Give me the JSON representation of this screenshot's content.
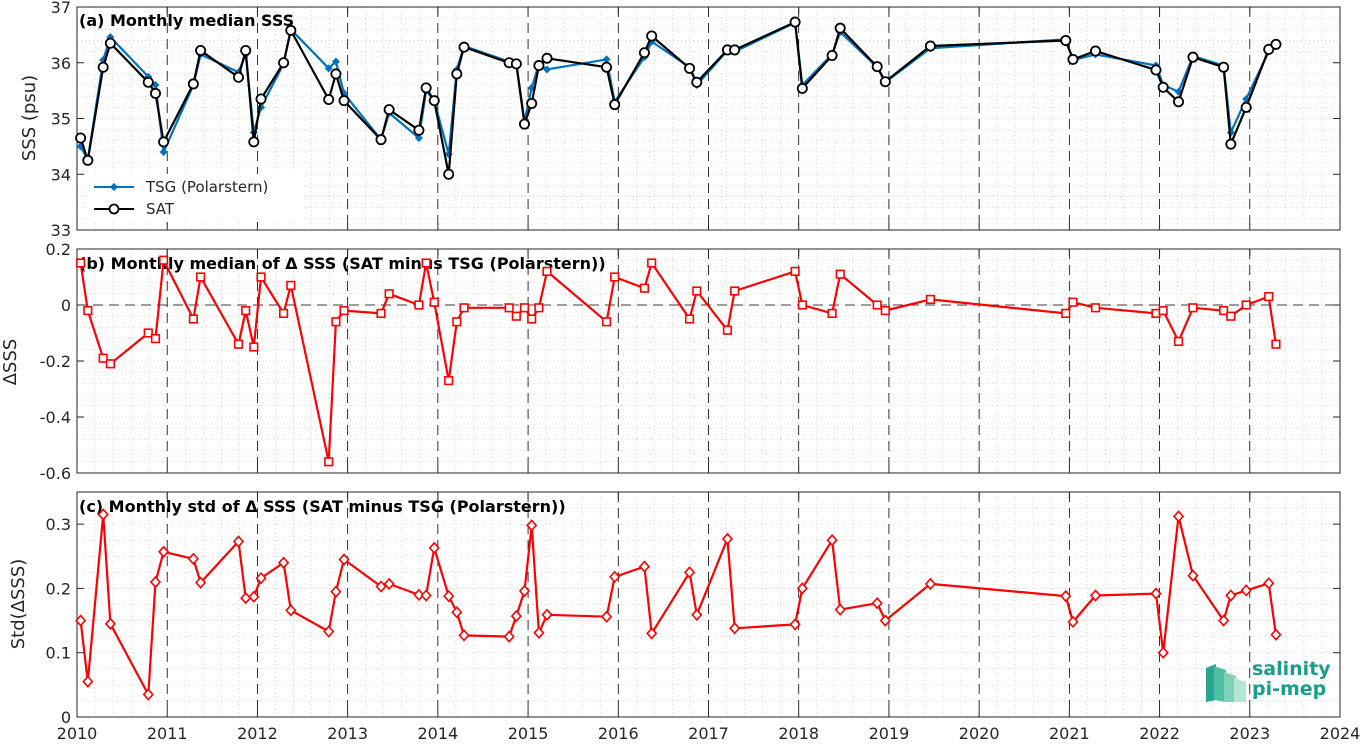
{
  "colors": {
    "tsg": "#0072BD",
    "sat": "#000000",
    "delta": "#ff0000"
  },
  "x_ticks": [
    "2010",
    "2011",
    "2012",
    "2013",
    "2014",
    "2015",
    "2016",
    "2017",
    "2018",
    "2019",
    "2020",
    "2021",
    "2022",
    "2023",
    "2024"
  ],
  "chart_data": [
    {
      "type": "line",
      "title": "(a) Monthly median SSS",
      "ylabel": "SSS (psu)",
      "xlim": [
        2010,
        2024
      ],
      "ylim": [
        33,
        37
      ],
      "yticks": [
        "33",
        "34",
        "35",
        "36",
        "37"
      ],
      "grid": "dotted minor grid; dashed vertical year lines",
      "legend_position": "lower-left",
      "series": [
        {
          "name": "TSG (Polarstern)",
          "marker": "filled-diamond",
          "points": [
            [
              2010.04,
              34.5
            ],
            [
              2010.12,
              34.26
            ],
            [
              2010.29,
              36.05
            ],
            [
              2010.37,
              36.46
            ],
            [
              2010.79,
              35.75
            ],
            [
              2010.87,
              35.6
            ],
            [
              2010.96,
              34.4
            ],
            [
              2011.29,
              35.6
            ],
            [
              2011.37,
              36.15
            ],
            [
              2011.79,
              35.83
            ],
            [
              2011.87,
              36.15
            ],
            [
              2011.96,
              34.75
            ],
            [
              2012.04,
              35.2
            ],
            [
              2012.29,
              35.98
            ],
            [
              2012.37,
              36.6
            ],
            [
              2012.79,
              35.9
            ],
            [
              2012.87,
              36.02
            ],
            [
              2012.96,
              35.45
            ],
            [
              2013.37,
              34.62
            ],
            [
              2013.46,
              35.1
            ],
            [
              2013.79,
              34.65
            ],
            [
              2013.87,
              35.5
            ],
            [
              2013.96,
              35.32
            ],
            [
              2014.12,
              34.36
            ],
            [
              2014.21,
              35.88
            ],
            [
              2014.29,
              36.3
            ],
            [
              2014.79,
              36.02
            ],
            [
              2014.87,
              36.0
            ],
            [
              2014.96,
              34.95
            ],
            [
              2015.04,
              35.55
            ],
            [
              2015.12,
              35.98
            ],
            [
              2015.21,
              35.88
            ],
            [
              2015.87,
              36.06
            ],
            [
              2015.96,
              35.3
            ],
            [
              2016.29,
              36.1
            ],
            [
              2016.37,
              36.38
            ],
            [
              2016.79,
              35.92
            ],
            [
              2016.87,
              35.6
            ],
            [
              2017.21,
              36.22
            ],
            [
              2017.29,
              36.2
            ],
            [
              2017.96,
              36.72
            ],
            [
              2018.04,
              35.6
            ],
            [
              2018.37,
              36.15
            ],
            [
              2018.46,
              36.55
            ],
            [
              2018.87,
              35.92
            ],
            [
              2018.96,
              35.65
            ],
            [
              2019.46,
              36.26
            ],
            [
              2020.96,
              36.42
            ],
            [
              2021.04,
              36.05
            ],
            [
              2021.29,
              36.15
            ],
            [
              2021.96,
              35.95
            ],
            [
              2022.04,
              35.6
            ],
            [
              2022.21,
              35.48
            ],
            [
              2022.37,
              36.12
            ],
            [
              2022.71,
              35.95
            ],
            [
              2022.79,
              34.75
            ],
            [
              2022.96,
              35.35
            ],
            [
              2023.21,
              36.2
            ],
            [
              2023.29,
              36.32
            ]
          ]
        },
        {
          "name": "SAT",
          "marker": "open-circle",
          "points": [
            [
              2010.04,
              34.65
            ],
            [
              2010.12,
              34.25
            ],
            [
              2010.29,
              35.92
            ],
            [
              2010.37,
              36.35
            ],
            [
              2010.79,
              35.65
            ],
            [
              2010.87,
              35.45
            ],
            [
              2010.96,
              34.58
            ],
            [
              2011.29,
              35.62
            ],
            [
              2011.37,
              36.22
            ],
            [
              2011.79,
              35.74
            ],
            [
              2011.87,
              36.22
            ],
            [
              2011.96,
              34.58
            ],
            [
              2012.04,
              35.35
            ],
            [
              2012.29,
              36.0
            ],
            [
              2012.37,
              36.58
            ],
            [
              2012.79,
              35.34
            ],
            [
              2012.87,
              35.8
            ],
            [
              2012.96,
              35.32
            ],
            [
              2013.37,
              34.62
            ],
            [
              2013.46,
              35.16
            ],
            [
              2013.79,
              34.79
            ],
            [
              2013.87,
              35.55
            ],
            [
              2013.96,
              35.32
            ],
            [
              2014.12,
              34.0
            ],
            [
              2014.21,
              35.8
            ],
            [
              2014.29,
              36.28
            ],
            [
              2014.79,
              36.0
            ],
            [
              2014.87,
              35.98
            ],
            [
              2014.96,
              34.9
            ],
            [
              2015.04,
              35.27
            ],
            [
              2015.12,
              35.95
            ],
            [
              2015.21,
              36.08
            ],
            [
              2015.87,
              35.92
            ],
            [
              2015.96,
              35.25
            ],
            [
              2016.29,
              36.18
            ],
            [
              2016.37,
              36.48
            ],
            [
              2016.79,
              35.9
            ],
            [
              2016.87,
              35.65
            ],
            [
              2017.21,
              36.23
            ],
            [
              2017.29,
              36.23
            ],
            [
              2017.96,
              36.73
            ],
            [
              2018.04,
              35.54
            ],
            [
              2018.37,
              36.13
            ],
            [
              2018.46,
              36.62
            ],
            [
              2018.87,
              35.93
            ],
            [
              2018.96,
              35.66
            ],
            [
              2019.46,
              36.3
            ],
            [
              2020.96,
              36.4
            ],
            [
              2021.04,
              36.06
            ],
            [
              2021.29,
              36.21
            ],
            [
              2021.96,
              35.87
            ],
            [
              2022.04,
              35.56
            ],
            [
              2022.21,
              35.3
            ],
            [
              2022.37,
              36.1
            ],
            [
              2022.71,
              35.92
            ],
            [
              2022.79,
              34.54
            ],
            [
              2022.96,
              35.2
            ],
            [
              2023.21,
              36.24
            ],
            [
              2023.29,
              36.33
            ]
          ]
        }
      ]
    },
    {
      "type": "line",
      "title": "(b) Monthly median of Δ SSS (SAT minus TSG (Polarstern))",
      "ylabel": "ΔSSS",
      "xlim": [
        2010,
        2024
      ],
      "ylim": [
        -0.6,
        0.2
      ],
      "yticks": [
        "-0.6",
        "-0.4",
        "-0.2",
        "0",
        "0.2"
      ],
      "zero_line": "dashed",
      "series": [
        {
          "marker": "open-square",
          "points": [
            [
              2010.04,
              0.15
            ],
            [
              2010.12,
              -0.02
            ],
            [
              2010.29,
              -0.19
            ],
            [
              2010.37,
              -0.21
            ],
            [
              2010.79,
              -0.1
            ],
            [
              2010.87,
              -0.12
            ],
            [
              2010.96,
              0.16
            ],
            [
              2011.29,
              -0.05
            ],
            [
              2011.37,
              0.1
            ],
            [
              2011.79,
              -0.14
            ],
            [
              2011.87,
              -0.02
            ],
            [
              2011.96,
              -0.15
            ],
            [
              2012.04,
              0.1
            ],
            [
              2012.29,
              -0.03
            ],
            [
              2012.37,
              0.07
            ],
            [
              2012.79,
              -0.56
            ],
            [
              2012.87,
              -0.06
            ],
            [
              2012.96,
              -0.02
            ],
            [
              2013.37,
              -0.03
            ],
            [
              2013.46,
              0.04
            ],
            [
              2013.79,
              0.0
            ],
            [
              2013.87,
              0.15
            ],
            [
              2013.96,
              0.01
            ],
            [
              2014.12,
              -0.27
            ],
            [
              2014.21,
              -0.06
            ],
            [
              2014.29,
              -0.01
            ],
            [
              2014.79,
              -0.01
            ],
            [
              2014.87,
              -0.04
            ],
            [
              2014.96,
              -0.01
            ],
            [
              2015.04,
              -0.05
            ],
            [
              2015.12,
              -0.01
            ],
            [
              2015.21,
              0.12
            ],
            [
              2015.87,
              -0.06
            ],
            [
              2015.96,
              0.1
            ],
            [
              2016.29,
              0.06
            ],
            [
              2016.37,
              0.15
            ],
            [
              2016.79,
              -0.05
            ],
            [
              2016.87,
              0.05
            ],
            [
              2017.21,
              -0.09
            ],
            [
              2017.29,
              0.05
            ],
            [
              2017.96,
              0.12
            ],
            [
              2018.04,
              0.0
            ],
            [
              2018.37,
              -0.03
            ],
            [
              2018.46,
              0.11
            ],
            [
              2018.87,
              0.0
            ],
            [
              2018.96,
              -0.02
            ],
            [
              2019.46,
              0.02
            ],
            [
              2020.96,
              -0.03
            ],
            [
              2021.04,
              0.01
            ],
            [
              2021.29,
              -0.01
            ],
            [
              2021.96,
              -0.03
            ],
            [
              2022.04,
              -0.02
            ],
            [
              2022.21,
              -0.13
            ],
            [
              2022.37,
              -0.01
            ],
            [
              2022.71,
              -0.02
            ],
            [
              2022.79,
              -0.04
            ],
            [
              2022.96,
              0.0
            ],
            [
              2023.21,
              0.03
            ],
            [
              2023.29,
              -0.14
            ]
          ]
        }
      ]
    },
    {
      "type": "line",
      "title": "(c) Monthly std of Δ SSS (SAT minus TSG (Polarstern))",
      "ylabel": "Std(ΔSSS)",
      "xlim": [
        2010,
        2024
      ],
      "ylim": [
        0,
        0.35
      ],
      "yticks": [
        "0",
        "0.1",
        "0.2",
        "0.3"
      ],
      "series": [
        {
          "marker": "open-diamond",
          "points": [
            [
              2010.04,
              0.15
            ],
            [
              2010.12,
              0.055
            ],
            [
              2010.29,
              0.315
            ],
            [
              2010.37,
              0.145
            ],
            [
              2010.79,
              0.035
            ],
            [
              2010.87,
              0.21
            ],
            [
              2010.96,
              0.257
            ],
            [
              2011.29,
              0.246
            ],
            [
              2011.37,
              0.209
            ],
            [
              2011.79,
              0.273
            ],
            [
              2011.87,
              0.185
            ],
            [
              2011.96,
              0.187
            ],
            [
              2012.04,
              0.216
            ],
            [
              2012.29,
              0.24
            ],
            [
              2012.37,
              0.166
            ],
            [
              2012.79,
              0.133
            ],
            [
              2012.87,
              0.195
            ],
            [
              2012.96,
              0.245
            ],
            [
              2013.37,
              0.203
            ],
            [
              2013.46,
              0.207
            ],
            [
              2013.79,
              0.19
            ],
            [
              2013.87,
              0.189
            ],
            [
              2013.96,
              0.263
            ],
            [
              2014.12,
              0.188
            ],
            [
              2014.21,
              0.163
            ],
            [
              2014.29,
              0.127
            ],
            [
              2014.79,
              0.125
            ],
            [
              2014.87,
              0.157
            ],
            [
              2014.96,
              0.196
            ],
            [
              2015.04,
              0.298
            ],
            [
              2015.12,
              0.131
            ],
            [
              2015.21,
              0.159
            ],
            [
              2015.87,
              0.156
            ],
            [
              2015.96,
              0.218
            ],
            [
              2016.29,
              0.234
            ],
            [
              2016.37,
              0.13
            ],
            [
              2016.79,
              0.225
            ],
            [
              2016.87,
              0.159
            ],
            [
              2017.21,
              0.277
            ],
            [
              2017.29,
              0.138
            ],
            [
              2017.96,
              0.144
            ],
            [
              2018.04,
              0.2
            ],
            [
              2018.37,
              0.275
            ],
            [
              2018.46,
              0.167
            ],
            [
              2018.87,
              0.177
            ],
            [
              2018.96,
              0.15
            ],
            [
              2019.46,
              0.207
            ],
            [
              2020.96,
              0.188
            ],
            [
              2021.04,
              0.148
            ],
            [
              2021.29,
              0.189
            ],
            [
              2021.96,
              0.192
            ],
            [
              2022.04,
              0.1
            ],
            [
              2022.21,
              0.312
            ],
            [
              2022.37,
              0.22
            ],
            [
              2022.71,
              0.15
            ],
            [
              2022.79,
              0.189
            ],
            [
              2022.96,
              0.197
            ],
            [
              2023.21,
              0.208
            ],
            [
              2023.29,
              0.128
            ]
          ]
        }
      ]
    }
  ],
  "logo": {
    "line1": "salinity",
    "line2": "pi-mep"
  }
}
